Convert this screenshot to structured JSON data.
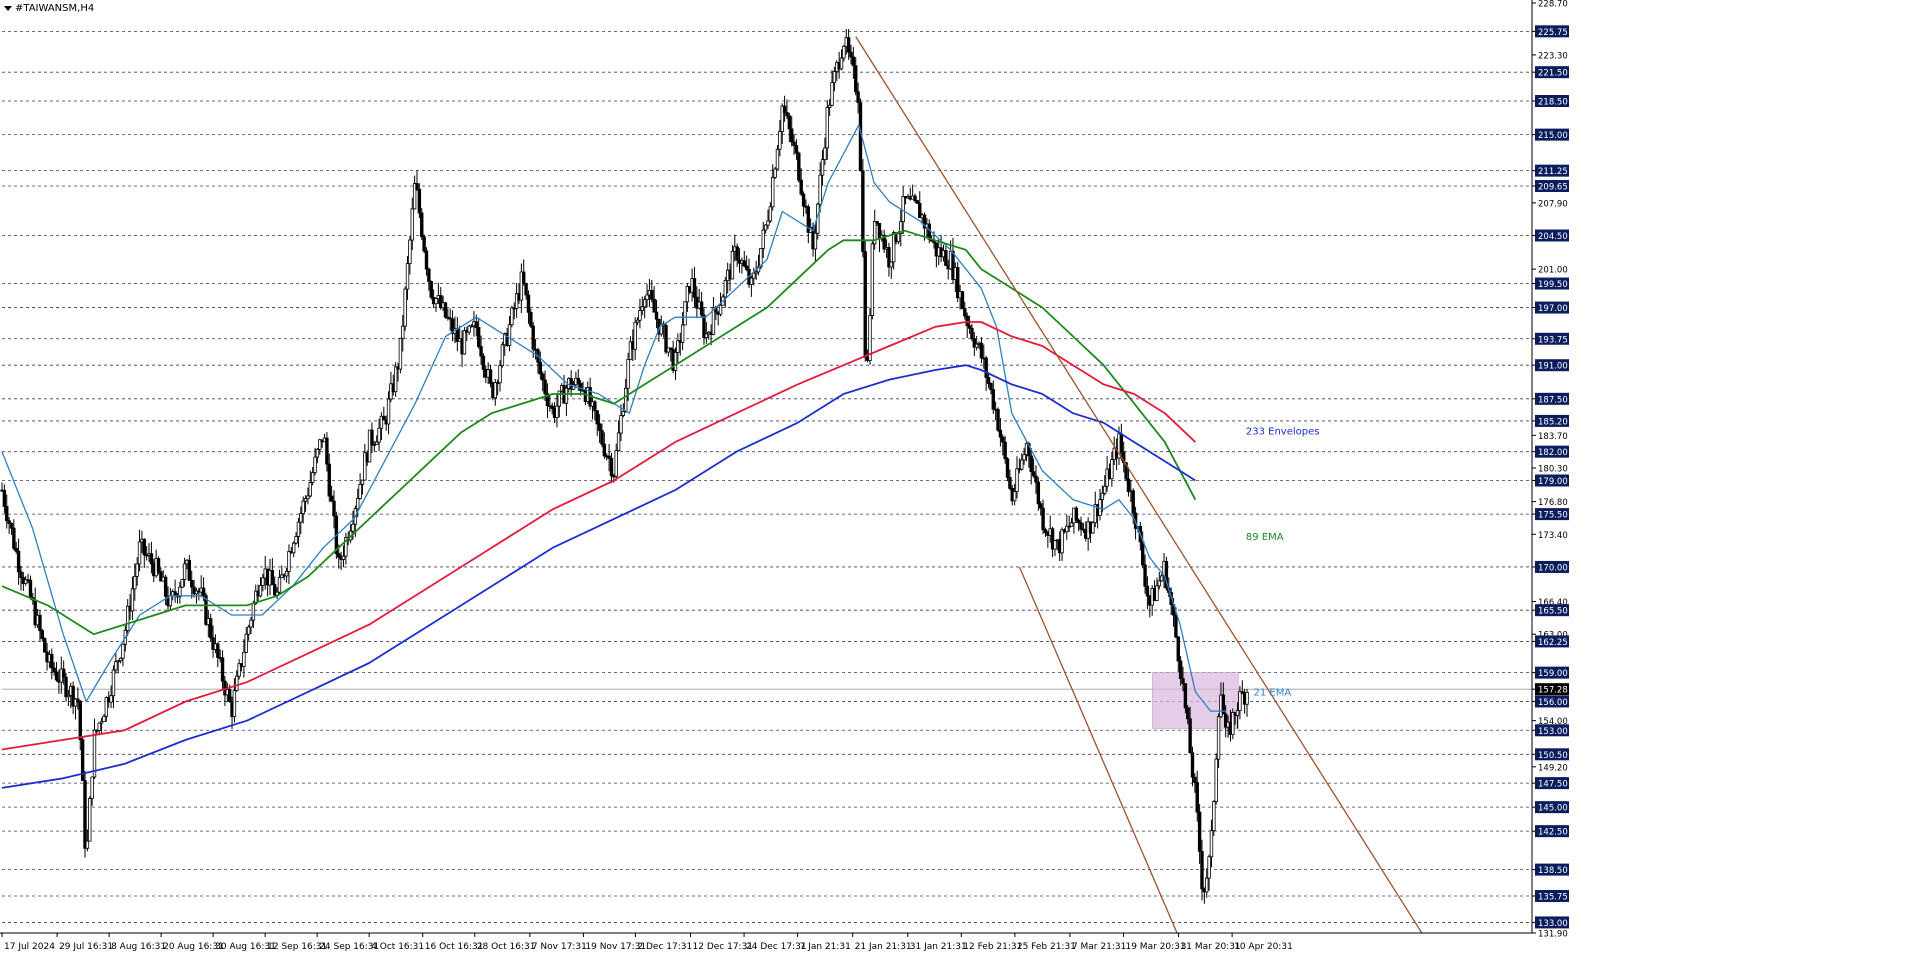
{
  "window": {
    "title": "#TAIWANSM,H4"
  },
  "colors": {
    "background": "#ffffff",
    "grid": "#1a1a4e",
    "candle": "#000000",
    "ema21": "#2f7fc1",
    "ema89": "#1c8a1c",
    "env_upper": "#e31a3c",
    "env_lower": "#1a2fd0",
    "channel": "#a0522d",
    "zone": "#d8b8dc",
    "price_label_bg": "#0b1d5c",
    "price_label_text": "#ffffff"
  },
  "chart_data": {
    "type": "candlestick",
    "symbol": "#TAIWANSM",
    "timeframe": "H4",
    "ylim": [
      131.9,
      228.7
    ],
    "xlim": [
      0,
      100
    ],
    "y_ticks": [
      "228.70",
      "225.75",
      "223.30",
      "221.50",
      "218.50",
      "215.00",
      "211.25",
      "209.65",
      "207.90",
      "204.50",
      "201.00",
      "199.50",
      "197.00",
      "193.75",
      "191.00",
      "187.50",
      "185.20",
      "183.70",
      "182.00",
      "180.30",
      "179.00",
      "176.80",
      "175.50",
      "173.40",
      "170.00",
      "166.40",
      "165.50",
      "163.00",
      "162.25",
      "159.00",
      "157.28",
      "156.00",
      "154.00",
      "153.00",
      "150.50",
      "149.20",
      "147.50",
      "145.00",
      "142.50",
      "138.50",
      "135.75",
      "133.00",
      "131.90"
    ],
    "y_tick_values": [
      228.7,
      225.75,
      223.3,
      221.5,
      218.5,
      215.0,
      211.25,
      209.65,
      207.9,
      204.5,
      201.0,
      199.5,
      197.0,
      193.75,
      191.0,
      187.5,
      185.2,
      183.7,
      182.0,
      180.3,
      179.0,
      176.8,
      175.5,
      173.4,
      170.0,
      166.4,
      165.5,
      163.0,
      162.25,
      159.0,
      157.28,
      156.0,
      154.0,
      153.0,
      150.5,
      149.2,
      147.5,
      145.0,
      142.5,
      138.5,
      135.75,
      133.0,
      131.9
    ],
    "highlighted_levels": [
      "225.75",
      "221.50",
      "218.50",
      "215.00",
      "211.25",
      "209.65",
      "204.50",
      "199.50",
      "197.00",
      "193.75",
      "191.00",
      "187.50",
      "185.20",
      "182.00",
      "179.00",
      "175.50",
      "170.00",
      "165.50",
      "162.25",
      "159.00",
      "156.00",
      "153.00",
      "150.50",
      "147.50",
      "145.00",
      "142.50",
      "138.50",
      "135.75",
      "133.00"
    ],
    "grid_levels": [
      225.75,
      221.5,
      218.5,
      215.0,
      211.25,
      209.65,
      204.5,
      199.5,
      197.0,
      193.75,
      191.0,
      187.5,
      185.2,
      182.0,
      179.0,
      175.5,
      170.0,
      165.5,
      162.25,
      159.0,
      156.0,
      153.0,
      150.5,
      147.5,
      145.0,
      142.5,
      138.5,
      135.75,
      133.0
    ],
    "current_price": "157.28",
    "current_price_value": 157.28,
    "x_tick_labels": [
      "17 Jul 2024",
      "29 Jul 16:31",
      "8 Aug 16:31",
      "20 Aug 16:31",
      "30 Aug 16:31",
      "12 Sep 16:31",
      "24 Sep 16:31",
      "4 Oct 16:31",
      "16 Oct 16:31",
      "28 Oct 16:31",
      "7 Nov 17:31",
      "19 Nov 17:31",
      "2 Dec 17:31",
      "12 Dec 17:31",
      "24 Dec 17:31",
      "7 Jan 21:31",
      "21 Jan 21:31",
      "31 Jan 21:31",
      "12 Feb 21:31",
      "25 Feb 21:31",
      "7 Mar 21:31",
      "19 Mar 20:31",
      "31 Mar 20:31",
      "10 Apr 20:31"
    ],
    "x_tick_positions": [
      0,
      3.6,
      7.0,
      10.4,
      13.8,
      17.2,
      20.6,
      24.0,
      27.5,
      30.9,
      34.5,
      38.0,
      41.4,
      45.0,
      48.5,
      52.0,
      55.6,
      59.2,
      62.7,
      66.2,
      69.8,
      73.3,
      76.9,
      80.4
    ],
    "price_path": [
      [
        0,
        178
      ],
      [
        1,
        171
      ],
      [
        2,
        166
      ],
      [
        3,
        160
      ],
      [
        4,
        158
      ],
      [
        5,
        156
      ],
      [
        5.5,
        139
      ],
      [
        6,
        152
      ],
      [
        7,
        157
      ],
      [
        8,
        163
      ],
      [
        9,
        172
      ],
      [
        10,
        170
      ],
      [
        11,
        166
      ],
      [
        12,
        170
      ],
      [
        13,
        167
      ],
      [
        14,
        161
      ],
      [
        15,
        155
      ],
      [
        16,
        163
      ],
      [
        17,
        170
      ],
      [
        18,
        167
      ],
      [
        19,
        173
      ],
      [
        20,
        178
      ],
      [
        21,
        184
      ],
      [
        22,
        170
      ],
      [
        23,
        176
      ],
      [
        24,
        183
      ],
      [
        25,
        185
      ],
      [
        26,
        192
      ],
      [
        27,
        210
      ],
      [
        28,
        199
      ],
      [
        29,
        196
      ],
      [
        30,
        193
      ],
      [
        31,
        195
      ],
      [
        32,
        188
      ],
      [
        33,
        194
      ],
      [
        34,
        200
      ],
      [
        35,
        191
      ],
      [
        36,
        186
      ],
      [
        37,
        189
      ],
      [
        38,
        189
      ],
      [
        39,
        184
      ],
      [
        40,
        180
      ],
      [
        41,
        192
      ],
      [
        42,
        199
      ],
      [
        43,
        195
      ],
      [
        44,
        191
      ],
      [
        45,
        200
      ],
      [
        46,
        194
      ],
      [
        47,
        198
      ],
      [
        48,
        203
      ],
      [
        49,
        199
      ],
      [
        50,
        206
      ],
      [
        51,
        218
      ],
      [
        52,
        212
      ],
      [
        53,
        203
      ],
      [
        54,
        218
      ],
      [
        55,
        225
      ],
      [
        56,
        219
      ],
      [
        56.5,
        188
      ],
      [
        57,
        207
      ],
      [
        58,
        202
      ],
      [
        59,
        208
      ],
      [
        60,
        207
      ],
      [
        61,
        203
      ],
      [
        62,
        202
      ],
      [
        63,
        196
      ],
      [
        64,
        192
      ],
      [
        65,
        186
      ],
      [
        66,
        177
      ],
      [
        67,
        183
      ],
      [
        68,
        175
      ],
      [
        69,
        172
      ],
      [
        70,
        175
      ],
      [
        71,
        174
      ],
      [
        72,
        178
      ],
      [
        73,
        183
      ],
      [
        74,
        176
      ],
      [
        75,
        166
      ],
      [
        76,
        170
      ],
      [
        77,
        160
      ],
      [
        78,
        146
      ],
      [
        78.5,
        136
      ],
      [
        79,
        140
      ],
      [
        79.6,
        158
      ],
      [
        80,
        152
      ],
      [
        80.8,
        156
      ],
      [
        81.4,
        157.3
      ]
    ],
    "indicators": [
      {
        "name": "21 EMA",
        "color": "#2f7fc1",
        "points": [
          [
            0,
            182
          ],
          [
            2,
            174
          ],
          [
            4,
            163
          ],
          [
            5.5,
            156
          ],
          [
            7,
            160
          ],
          [
            9,
            165
          ],
          [
            11,
            167
          ],
          [
            13,
            167
          ],
          [
            15,
            165
          ],
          [
            17,
            165
          ],
          [
            19,
            168
          ],
          [
            21,
            172
          ],
          [
            23,
            175
          ],
          [
            25,
            181
          ],
          [
            27,
            187
          ],
          [
            29,
            194
          ],
          [
            31,
            196
          ],
          [
            33,
            194
          ],
          [
            35,
            192
          ],
          [
            37,
            189
          ],
          [
            39,
            188
          ],
          [
            41,
            186
          ],
          [
            42,
            191
          ],
          [
            43,
            195
          ],
          [
            44,
            196
          ],
          [
            46,
            196
          ],
          [
            48,
            199
          ],
          [
            50,
            202
          ],
          [
            51,
            207
          ],
          [
            53,
            205
          ],
          [
            54,
            210
          ],
          [
            56,
            216
          ],
          [
            57,
            210
          ],
          [
            58,
            208
          ],
          [
            60,
            206
          ],
          [
            62,
            203
          ],
          [
            64,
            199
          ],
          [
            65,
            195
          ],
          [
            66,
            186
          ],
          [
            67,
            183
          ],
          [
            68,
            180
          ],
          [
            70,
            177
          ],
          [
            72,
            176
          ],
          [
            73,
            177
          ],
          [
            74,
            175
          ],
          [
            75,
            171
          ],
          [
            76,
            169
          ],
          [
            77,
            164
          ],
          [
            78,
            157
          ],
          [
            79,
            155
          ],
          [
            80,
            155
          ]
        ]
      },
      {
        "name": "89 EMA",
        "color": "#1c8a1c",
        "points": [
          [
            0,
            168
          ],
          [
            3,
            166
          ],
          [
            6,
            163
          ],
          [
            8,
            164
          ],
          [
            10,
            165
          ],
          [
            12,
            166
          ],
          [
            14,
            166
          ],
          [
            16,
            166
          ],
          [
            18,
            167
          ],
          [
            20,
            169
          ],
          [
            22,
            172
          ],
          [
            24,
            175
          ],
          [
            26,
            178
          ],
          [
            28,
            181
          ],
          [
            30,
            184
          ],
          [
            32,
            186
          ],
          [
            34,
            187
          ],
          [
            36,
            188
          ],
          [
            38,
            188
          ],
          [
            40,
            187
          ],
          [
            42,
            189
          ],
          [
            44,
            191
          ],
          [
            46,
            193
          ],
          [
            48,
            195
          ],
          [
            50,
            197
          ],
          [
            52,
            200
          ],
          [
            54,
            203
          ],
          [
            55,
            204
          ],
          [
            57,
            204
          ],
          [
            59,
            205
          ],
          [
            61,
            204
          ],
          [
            63,
            203
          ],
          [
            64,
            201
          ],
          [
            66,
            199
          ],
          [
            68,
            197
          ],
          [
            70,
            194
          ],
          [
            72,
            191
          ],
          [
            74,
            187
          ],
          [
            76,
            183
          ],
          [
            77,
            180
          ],
          [
            78,
            177
          ]
        ]
      },
      {
        "name": "233 Envelopes upper",
        "color": "#e31a3c",
        "points": [
          [
            0,
            151
          ],
          [
            4,
            152
          ],
          [
            8,
            153
          ],
          [
            12,
            156
          ],
          [
            16,
            158
          ],
          [
            20,
            161
          ],
          [
            24,
            164
          ],
          [
            28,
            168
          ],
          [
            32,
            172
          ],
          [
            36,
            176
          ],
          [
            40,
            179
          ],
          [
            44,
            183
          ],
          [
            48,
            186
          ],
          [
            52,
            189
          ],
          [
            55,
            191
          ],
          [
            58,
            193
          ],
          [
            61,
            195
          ],
          [
            63,
            195.5
          ],
          [
            64,
            195.5
          ],
          [
            66,
            194
          ],
          [
            68,
            193
          ],
          [
            70,
            191
          ],
          [
            72,
            189
          ],
          [
            74,
            188
          ],
          [
            76,
            186
          ],
          [
            78,
            183
          ]
        ]
      },
      {
        "name": "233 Envelopes lower",
        "color": "#1a2fd0",
        "points": [
          [
            0,
            147
          ],
          [
            4,
            148
          ],
          [
            8,
            149.5
          ],
          [
            12,
            152
          ],
          [
            16,
            154
          ],
          [
            20,
            157
          ],
          [
            24,
            160
          ],
          [
            28,
            164
          ],
          [
            32,
            168
          ],
          [
            36,
            172
          ],
          [
            40,
            175
          ],
          [
            44,
            178
          ],
          [
            48,
            182
          ],
          [
            52,
            185
          ],
          [
            55,
            188
          ],
          [
            58,
            189.5
          ],
          [
            61,
            190.5
          ],
          [
            63,
            191
          ],
          [
            64,
            190.5
          ],
          [
            66,
            189
          ],
          [
            68,
            188
          ],
          [
            70,
            186
          ],
          [
            72,
            185
          ],
          [
            74,
            183
          ],
          [
            76,
            181
          ],
          [
            78,
            179
          ]
        ]
      }
    ],
    "annotations": [
      {
        "text": "233 Envelopes",
        "x": 81.3,
        "y": 183.8,
        "color": "#1a2fd0"
      },
      {
        "text": "89 EMA",
        "x": 81.3,
        "y": 172.8,
        "color": "#1c8a1c"
      },
      {
        "text": "21 EMA",
        "x": 81.8,
        "y": 156.6,
        "color": "#2f7fc1"
      }
    ],
    "channel_lines": [
      {
        "x1": 55.8,
        "y1": 225.2,
        "x2": 92.8,
        "y2": 131.9
      },
      {
        "x1": 66.5,
        "y1": 170.0,
        "x2": 76.8,
        "y2": 131.9
      }
    ],
    "zone": {
      "x0": 75.2,
      "x1": 80.8,
      "y0": 153.2,
      "y1": 159.0
    }
  }
}
